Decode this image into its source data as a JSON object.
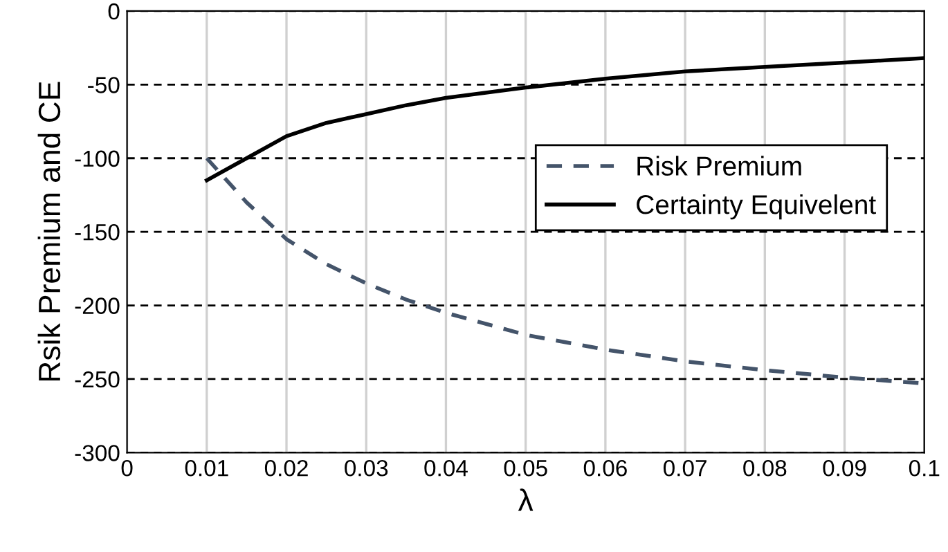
{
  "chart_data": {
    "type": "line",
    "xlabel": "λ",
    "ylabel": "Rsik Premium and CE",
    "xlim": [
      0,
      0.1
    ],
    "xticks": [
      0,
      0.01,
      0.02,
      0.03,
      0.04,
      0.05,
      0.06,
      0.07,
      0.08,
      0.09,
      0.1
    ],
    "ylim": [
      -300,
      0
    ],
    "yticks": [
      -300,
      -250,
      -200,
      -150,
      -100,
      -50,
      0
    ],
    "grid": true,
    "legend": "right",
    "series": [
      {
        "name": "Risk Premium",
        "color": "#44546a",
        "line_style": "dashed",
        "x": [
          0.01,
          0.015,
          0.02,
          0.025,
          0.03,
          0.035,
          0.04,
          0.05,
          0.06,
          0.07,
          0.08,
          0.09,
          0.1
        ],
        "values": [
          -100,
          -130,
          -155,
          -172,
          -185,
          -196,
          -205,
          -220,
          -230,
          -238,
          -244,
          -249,
          -253
        ]
      },
      {
        "name": "Certainty Equivelent",
        "color": "#000000",
        "line_style": "solid",
        "x": [
          0.01,
          0.015,
          0.02,
          0.025,
          0.03,
          0.035,
          0.04,
          0.05,
          0.06,
          0.07,
          0.08,
          0.09,
          0.1
        ],
        "values": [
          -115,
          -100,
          -85,
          -76,
          -70,
          -64,
          -59,
          -52,
          -46,
          -41,
          -38,
          -35,
          -32
        ]
      }
    ]
  }
}
